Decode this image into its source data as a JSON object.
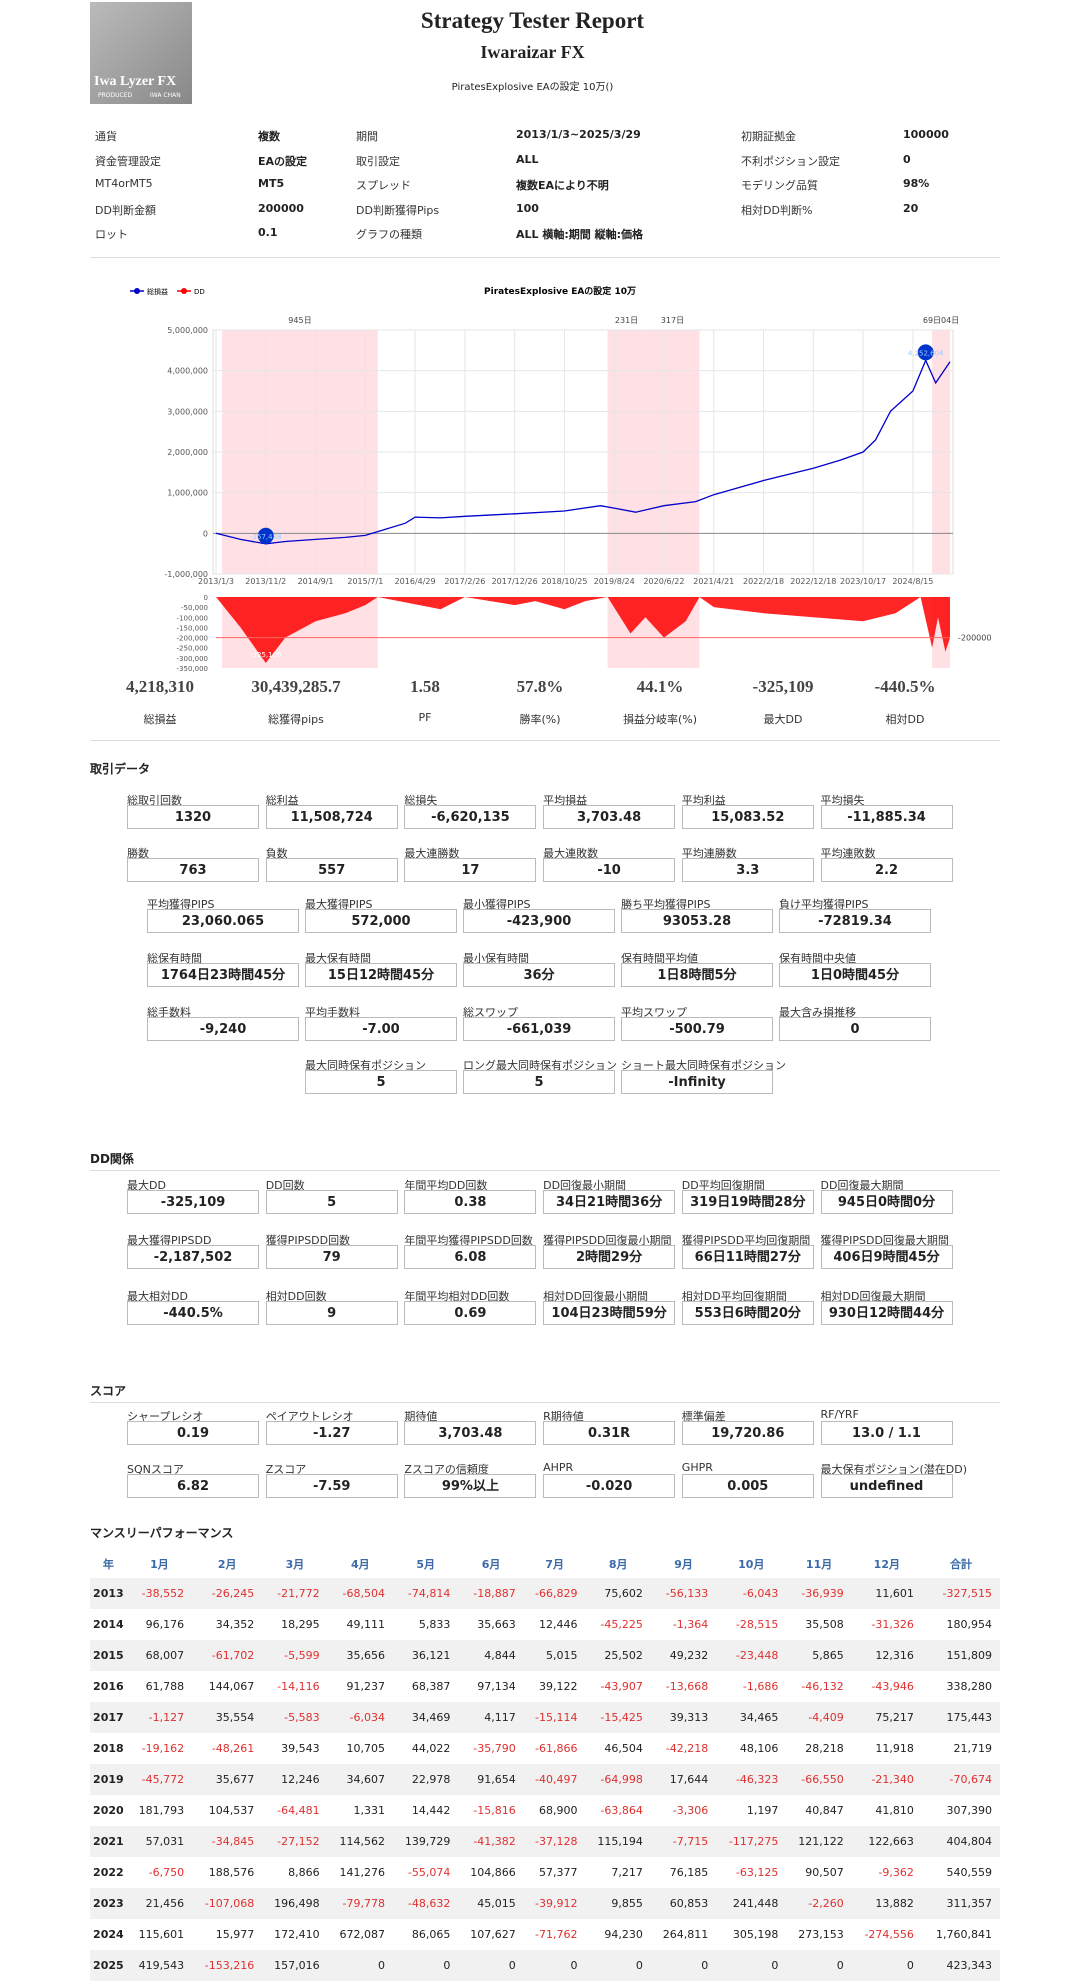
{
  "header": {
    "logo": {
      "name": "Iwa Lyzer FX",
      "produced": "PRODUCED",
      "author": "IWA CHAN"
    },
    "title": "Strategy Tester Report",
    "subtitle": "Iwaraizar FX",
    "caption": "PiratesExplosive EAの設定 10万()"
  },
  "info": [
    [
      [
        "通貨",
        "複数"
      ],
      [
        "期間",
        "2013/1/3~2025/3/29"
      ],
      [
        "初期証拠金",
        "100000"
      ]
    ],
    [
      [
        "資金管理設定",
        "EAの設定"
      ],
      [
        "取引設定",
        "ALL"
      ],
      [
        "不利ポジション設定",
        "0"
      ]
    ],
    [
      [
        "MT4orMT5",
        "MT5"
      ],
      [
        "スプレッド",
        "複数EAにより不明"
      ],
      [
        "モデリング品質",
        "98%"
      ]
    ],
    [
      [
        "DD判断金額",
        "200000"
      ],
      [
        "DD判断獲得Pips",
        "100"
      ],
      [
        "相対DD判断%",
        "20"
      ]
    ],
    [
      [
        "ロット",
        "0.1"
      ],
      [
        "グラフの種類",
        "ALL 横軸:期間 縦軸:価格"
      ]
    ]
  ],
  "chart": {
    "type": "line",
    "title": "PiratesExplosive EAの設定 10万",
    "xlim": [
      "2013/1/3",
      "2025/3/29"
    ],
    "xticks": [
      "2013/1/3",
      "2013/11/2",
      "2014/9/1",
      "2015/7/1",
      "2016/4/29",
      "2017/2/26",
      "2017/12/26",
      "2018/10/25",
      "2019/8/24",
      "2020/6/22",
      "2021/4/21",
      "2022/2/18",
      "2022/12/18",
      "2023/10/17",
      "2024/8/15"
    ],
    "ylim": [
      -1000000,
      5000000
    ],
    "yticks": [
      {
        "value": -1000000,
        "label": "-1,000,000"
      },
      0,
      {
        "value": 1000000,
        "label": "1,000,000"
      },
      {
        "value": 2000000,
        "label": "2,000,000"
      },
      {
        "value": 3000000,
        "label": "3,000,000"
      },
      {
        "value": 4000000,
        "label": "4,000,000"
      },
      {
        "value": 5000000,
        "label": "5,000,000"
      }
    ],
    "series": [
      {
        "name": "総損益",
        "color": "#0000cc",
        "x": [
          "2013/1/3",
          "2013/6/1",
          "2013/11/2",
          "2014/3/1",
          "2014/9/1",
          "2015/3/1",
          "2015/7/1",
          "2015/11/1",
          "2016/3/1",
          "2016/4/29",
          "2016/10/1",
          "2017/2/26",
          "2017/12/26",
          "2018/10/25",
          "2019/6/1",
          "2019/8/24",
          "2020/1/1",
          "2020/6/22",
          "2021/1/1",
          "2021/4/21",
          "2022/2/18",
          "2022/12/18",
          "2023/6/1",
          "2023/10/17",
          "2024/1/1",
          "2024/4/1",
          "2024/8/15",
          "2024/11/1",
          "2025/1/1",
          "2025/3/29"
        ],
        "values": [
          0,
          -150000,
          -257438,
          -200000,
          -150000,
          -100000,
          -50000,
          100000,
          250000,
          400000,
          380000,
          420000,
          480000,
          550000,
          680000,
          620000,
          520000,
          680000,
          780000,
          950000,
          1300000,
          1600000,
          1800000,
          2000000,
          2300000,
          3000000,
          3500000,
          4252604,
          3700000,
          4218310
        ]
      }
    ],
    "markers": [
      {
        "x": "2013/11/2",
        "value": -257438,
        "label": "-257,438"
      },
      {
        "x": "2024/11/1",
        "value": 4252604,
        "label": "4,252,604"
      }
    ],
    "periods": [
      {
        "start": "2013/2/9",
        "end": "2015/9/15",
        "label": "945日"
      },
      {
        "start": "2019/7/15",
        "end": "2020/3/1",
        "label": "231日"
      },
      {
        "start": "2020/3/1",
        "end": "2021/1/24",
        "label": "317日"
      },
      {
        "start": "2024/12/10",
        "end": "2025/3/29",
        "label": "69日04日"
      }
    ],
    "dd": {
      "name": "DD",
      "color": "#ff0000",
      "ylim": [
        -350000,
        0
      ],
      "yticks": [
        {
          "value": -350000,
          "label": "-350,000"
        },
        {
          "value": -300000,
          "label": "-300,000"
        },
        {
          "value": -250000,
          "label": "-250,000"
        },
        {
          "value": -200000,
          "label": "-200,000"
        },
        {
          "value": -150000,
          "label": "-150,000"
        },
        {
          "value": -100000,
          "label": "-100,000"
        },
        {
          "value": -50000,
          "label": "-50,000"
        },
        0
      ],
      "threshold": -200000,
      "x": [
        "2013/1/3",
        "2013/6/1",
        "2013/11/2",
        "2014/3/1",
        "2014/9/1",
        "2015/3/1",
        "2015/7/1",
        "2015/9/15",
        "2016/10/1",
        "2017/2/26",
        "2017/12/26",
        "2018/5/1",
        "2018/10/25",
        "2019/3/1",
        "2019/7/15",
        "2019/12/1",
        "2020/3/1",
        "2020/6/22",
        "2020/11/1",
        "2021/1/24",
        "2021/4/21",
        "2022/2/18",
        "2022/12/18",
        "2023/10/17",
        "2024/5/1",
        "2024/10/1",
        "2024/12/10",
        "2025/1/15",
        "2025/3/1",
        "2025/3/29"
      ],
      "values": [
        0,
        -150000,
        -325109,
        -200000,
        -120000,
        -80000,
        -40000,
        0,
        -60000,
        0,
        -40000,
        -20000,
        -60000,
        -20000,
        0,
        -180000,
        -100000,
        -200000,
        -120000,
        0,
        -50000,
        -80000,
        -100000,
        -120000,
        -80000,
        0,
        -250000,
        -100000,
        -270000,
        -200000
      ],
      "min_label": {
        "x": "2013/11/2",
        "value": -325109,
        "label": "-325,109"
      }
    }
  },
  "summary": [
    [
      "4,218,310",
      "総損益"
    ],
    [
      "30,439,285.7",
      "総獲得pips"
    ],
    [
      "1.58",
      "PF"
    ],
    [
      "57.8%",
      "勝率(%)"
    ],
    [
      "44.1%",
      "損益分岐率(%)"
    ],
    [
      "-325,109",
      "最大DD"
    ],
    [
      "-440.5%",
      "相対DD"
    ]
  ],
  "trade_data": {
    "heading": "取引データ",
    "rows": [
      [
        [
          "総取引回数",
          "1320"
        ],
        [
          "総利益",
          "11,508,724"
        ],
        [
          "総損失",
          "-6,620,135"
        ],
        [
          "平均損益",
          "3,703.48"
        ],
        [
          "平均利益",
          "15,083.52"
        ],
        [
          "平均損失",
          "-11,885.34"
        ]
      ],
      [
        [
          "勝数",
          "763"
        ],
        [
          "負数",
          "557"
        ],
        [
          "最大連勝数",
          "17"
        ],
        [
          "最大連敗数",
          "-10"
        ],
        [
          "平均連勝数",
          "3.3"
        ],
        [
          "平均連敗数",
          "2.2"
        ]
      ],
      [
        [
          "平均獲得PIPS",
          "23,060.065"
        ],
        [
          "最大獲得PIPS",
          "572,000"
        ],
        [
          "最小獲得PIPS",
          "-423,900"
        ],
        [
          "勝ち平均獲得PIPS",
          "93053.28"
        ],
        [
          "負け平均獲得PIPS",
          "-72819.34"
        ]
      ],
      [
        [
          "総保有時間",
          "1764日23時間45分"
        ],
        [
          "最大保有時間",
          "15日12時間45分"
        ],
        [
          "最小保有時間",
          "36分"
        ],
        [
          "保有時間平均値",
          "1日8時間5分"
        ],
        [
          "保有時間中央値",
          "1日0時間45分"
        ]
      ],
      [
        [
          "総手数料",
          "-9,240"
        ],
        [
          "平均手数料",
          "-7.00"
        ],
        [
          "総スワップ",
          "-661,039"
        ],
        [
          "平均スワップ",
          "-500.79"
        ],
        [
          "最大含み損推移",
          "0"
        ]
      ],
      [
        [
          "最大同時保有ポジション",
          "5"
        ],
        [
          "ロング最大同時保有ポジション",
          "5"
        ],
        [
          "ショート最大同時保有ポジション",
          "-Infinity"
        ]
      ]
    ]
  },
  "dd_data": {
    "heading": "DD関係",
    "rows": [
      [
        [
          "最大DD",
          "-325,109"
        ],
        [
          "DD回数",
          "5"
        ],
        [
          "年間平均DD回数",
          "0.38"
        ],
        [
          "DD回復最小期間",
          "34日21時間36分"
        ],
        [
          "DD平均回復期間",
          "319日19時間28分"
        ],
        [
          "DD回復最大期間",
          "945日0時間0分"
        ]
      ],
      [
        [
          "最大獲得PIPSDD",
          "-2,187,502"
        ],
        [
          "獲得PIPSDD回数",
          "79"
        ],
        [
          "年間平均獲得PIPSDD回数",
          "6.08"
        ],
        [
          "獲得PIPSDD回復最小期間",
          "2時間29分"
        ],
        [
          "獲得PIPSDD平均回復期間",
          "66日11時間27分"
        ],
        [
          "獲得PIPSDD回復最大期間",
          "406日9時間45分"
        ]
      ],
      [
        [
          "最大相対DD",
          "-440.5%"
        ],
        [
          "相対DD回数",
          "9"
        ],
        [
          "年間平均相対DD回数",
          "0.69"
        ],
        [
          "相対DD回復最小期間",
          "104日23時間59分"
        ],
        [
          "相対DD平均回復期間",
          "553日6時間20分"
        ],
        [
          "相対DD回復最大期間",
          "930日12時間44分"
        ]
      ]
    ]
  },
  "score": {
    "heading": "スコア",
    "rows": [
      [
        [
          "シャープレシオ",
          "0.19"
        ],
        [
          "ペイアウトレシオ",
          "-1.27"
        ],
        [
          "期待値",
          "3,703.48"
        ],
        [
          "R期待値",
          "0.31R"
        ],
        [
          "標準偏差",
          "19,720.86"
        ],
        [
          "RF/YRF",
          "13.0 / 1.1"
        ]
      ],
      [
        [
          "SQNスコア",
          "6.82"
        ],
        [
          "Zスコア",
          "-7.59"
        ],
        [
          "Zスコアの信頼度",
          "99%以上"
        ],
        [
          "AHPR",
          "-0.020"
        ],
        [
          "GHPR",
          "0.005"
        ],
        [
          "最大保有ポジション(潜在DD)",
          "undefined"
        ]
      ]
    ]
  },
  "monthly": {
    "heading": "マンスリーパフォーマンス",
    "columns": [
      "年",
      "1月",
      "2月",
      "3月",
      "4月",
      "5月",
      "6月",
      "7月",
      "8月",
      "9月",
      "10月",
      "11月",
      "12月",
      "合計"
    ],
    "rows": [
      [
        "2013",
        "-38,552",
        "-26,245",
        "-21,772",
        "-68,504",
        "-74,814",
        "-18,887",
        "-66,829",
        "75,602",
        "-56,133",
        "-6,043",
        "-36,939",
        "11,601",
        "-327,515"
      ],
      [
        "2014",
        "96,176",
        "34,352",
        "18,295",
        "49,111",
        "5,833",
        "35,663",
        "12,446",
        "-45,225",
        "-1,364",
        "-28,515",
        "35,508",
        "-31,326",
        "180,954"
      ],
      [
        "2015",
        "68,007",
        "-61,702",
        "-5,599",
        "35,656",
        "36,121",
        "4,844",
        "5,015",
        "25,502",
        "49,232",
        "-23,448",
        "5,865",
        "12,316",
        "151,809"
      ],
      [
        "2016",
        "61,788",
        "144,067",
        "-14,116",
        "91,237",
        "68,387",
        "97,134",
        "39,122",
        "-43,907",
        "-13,668",
        "-1,686",
        "-46,132",
        "-43,946",
        "338,280"
      ],
      [
        "2017",
        "-1,127",
        "35,554",
        "-5,583",
        "-6,034",
        "34,469",
        "4,117",
        "-15,114",
        "-15,425",
        "39,313",
        "34,465",
        "-4,409",
        "75,217",
        "175,443"
      ],
      [
        "2018",
        "-19,162",
        "-48,261",
        "39,543",
        "10,705",
        "44,022",
        "-35,790",
        "-61,866",
        "46,504",
        "-42,218",
        "48,106",
        "28,218",
        "11,918",
        "21,719"
      ],
      [
        "2019",
        "-45,772",
        "35,677",
        "12,246",
        "34,607",
        "22,978",
        "91,654",
        "-40,497",
        "-64,998",
        "17,644",
        "-46,323",
        "-66,550",
        "-21,340",
        "-70,674"
      ],
      [
        "2020",
        "181,793",
        "104,537",
        "-64,481",
        "1,331",
        "14,442",
        "-15,816",
        "68,900",
        "-63,864",
        "-3,306",
        "1,197",
        "40,847",
        "41,810",
        "307,390"
      ],
      [
        "2021",
        "57,031",
        "-34,845",
        "-27,152",
        "114,562",
        "139,729",
        "-41,382",
        "-37,128",
        "115,194",
        "-7,715",
        "-117,275",
        "121,122",
        "122,663",
        "404,804"
      ],
      [
        "2022",
        "-6,750",
        "188,576",
        "8,866",
        "141,276",
        "-55,074",
        "104,866",
        "57,377",
        "7,217",
        "76,185",
        "-63,125",
        "90,507",
        "-9,362",
        "540,559"
      ],
      [
        "2023",
        "21,456",
        "-107,068",
        "196,498",
        "-79,778",
        "-48,632",
        "45,015",
        "-39,912",
        "9,855",
        "60,853",
        "241,448",
        "-2,260",
        "13,882",
        "311,357"
      ],
      [
        "2024",
        "115,601",
        "15,977",
        "172,410",
        "672,087",
        "86,065",
        "107,627",
        "-71,762",
        "94,230",
        "264,811",
        "305,198",
        "273,153",
        "-274,556",
        "1,760,841"
      ],
      [
        "2025",
        "419,543",
        "-153,216",
        "157,016",
        "0",
        "0",
        "0",
        "0",
        "0",
        "0",
        "0",
        "0",
        "0",
        "423,343"
      ]
    ]
  }
}
